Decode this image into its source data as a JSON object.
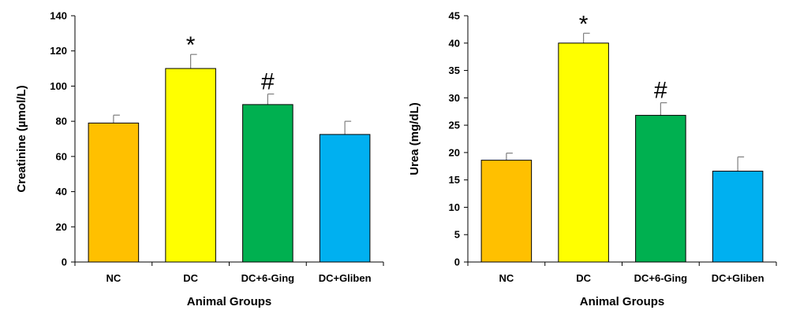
{
  "chart_data": [
    {
      "type": "bar",
      "categories": [
        "NC",
        "DC",
        "DC+6-Ging",
        "DC+Gliben"
      ],
      "values": [
        79,
        110,
        89.5,
        72.5
      ],
      "errors": [
        4.5,
        8,
        6,
        7.5
      ],
      "annotations": [
        "",
        "*",
        "#",
        ""
      ],
      "colors": [
        "#FFC000",
        "#FFFF00",
        "#00B050",
        "#00B0F0"
      ],
      "xlabel": "Animal Groups",
      "ylabel": "Creatinine (µmol/L)",
      "ylim": [
        0,
        140
      ],
      "yticks": [
        0,
        20,
        40,
        60,
        80,
        100,
        120,
        140
      ],
      "ytick_labels": [
        "0",
        "20",
        "40",
        "60",
        "80",
        "100",
        "120",
        "140"
      ],
      "grid": false
    },
    {
      "type": "bar",
      "categories": [
        "NC",
        "DC",
        "DC+6-Ging",
        "DC+Gliben"
      ],
      "values": [
        18.6,
        40,
        26.8,
        16.6
      ],
      "errors": [
        1.3,
        1.8,
        2.3,
        2.6
      ],
      "annotations": [
        "",
        "*",
        "#",
        ""
      ],
      "colors": [
        "#FFC000",
        "#FFFF00",
        "#00B050",
        "#00B0F0"
      ],
      "xlabel": "Animal Groups",
      "ylabel": "Urea (mg/dL)",
      "ylim": [
        0,
        45
      ],
      "yticks": [
        0,
        5,
        10,
        15,
        20,
        25,
        30,
        35,
        40,
        45
      ],
      "ytick_labels": [
        "0",
        "5",
        "10",
        "15",
        "20",
        "25",
        "30",
        "35",
        "40",
        "45"
      ],
      "grid": false
    }
  ]
}
